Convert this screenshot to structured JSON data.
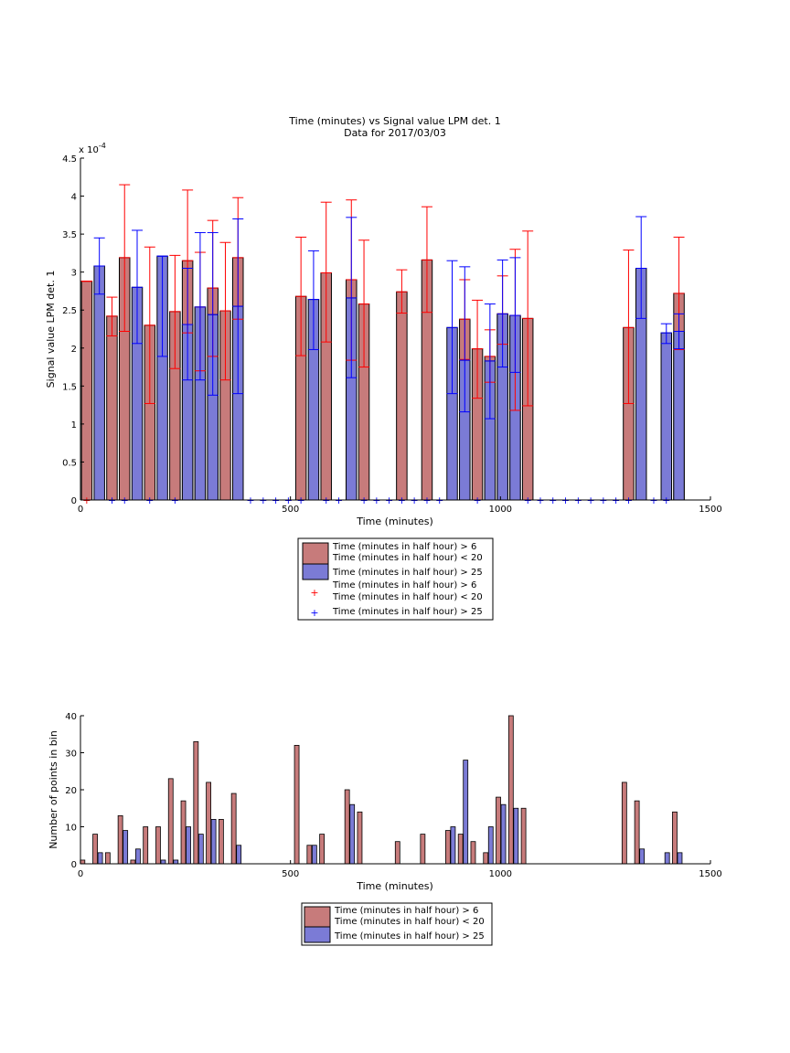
{
  "chart_data": [
    {
      "type": "bar",
      "title": "Time (minutes) vs Signal value LPM det. 1",
      "subtitle": "Data for 2017/03/03",
      "xlabel": "Time (minutes)",
      "ylabel": "Signal value LPM det. 1",
      "exponent_label": "x 10",
      "exponent_power": "-4",
      "xlim": [
        0,
        1500
      ],
      "ylim": [
        0,
        4.5
      ],
      "y_scale": 0.0001,
      "xticks": [
        "0",
        "500",
        "1000",
        "1500"
      ],
      "yticks": [
        "0",
        "0.5",
        "1",
        "1.5",
        "2",
        "2.5",
        "3",
        "3.5",
        "4",
        "4.5"
      ],
      "grid": false,
      "legend_position": "below",
      "legend": [
        {
          "label": "Time (minutes in half hour) > 6\nTime (minutes in half hour) < 20",
          "color": "#c77b7b",
          "marker": "patch"
        },
        {
          "label": "Time (minutes in half hour) > 25",
          "color": "#7b7bd6",
          "marker": "patch"
        },
        {
          "label": "Time (minutes in half hour) > 6\nTime (minutes in half hour) < 20",
          "color": "#ff0000",
          "marker": "+"
        },
        {
          "label": "Time (minutes in half hour) > 25",
          "color": "#0000ff",
          "marker": "+"
        }
      ],
      "series": [
        {
          "name": "Time (minutes in half hour) > 6 Time (minutes in half hour) < 20",
          "color": "#c77b7b",
          "err_color": "#ff0000",
          "x": [
            15,
            75,
            105,
            165,
            225,
            255,
            285,
            315,
            345,
            375,
            525,
            585,
            645,
            675,
            765,
            825,
            915,
            945,
            975,
            1005,
            1035,
            1065,
            1305,
            1425
          ],
          "values": [
            2.88,
            2.42,
            3.19,
            2.3,
            2.48,
            3.15,
            2.54,
            2.79,
            2.49,
            3.19,
            2.68,
            2.99,
            2.9,
            2.58,
            2.74,
            3.16,
            2.38,
            1.99,
            1.89,
            2.45,
            2.43,
            2.39,
            2.27,
            2.72
          ],
          "err_low": [
            2.88,
            2.16,
            2.22,
            1.27,
            1.73,
            2.2,
            1.7,
            1.89,
            1.58,
            2.38,
            1.9,
            2.08,
            1.84,
            1.75,
            2.46,
            2.47,
            1.85,
            1.34,
            1.55,
            2.05,
            1.18,
            1.24,
            1.27,
            1.98
          ],
          "err_high": [
            2.88,
            2.67,
            4.15,
            3.33,
            3.22,
            4.08,
            3.26,
            3.68,
            3.39,
            3.98,
            3.46,
            3.92,
            3.95,
            3.42,
            3.03,
            3.86,
            2.9,
            2.63,
            2.24,
            2.95,
            3.3,
            3.54,
            3.29,
            3.46
          ]
        },
        {
          "name": "Time (minutes in half hour) > 25",
          "color": "#7b7bd6",
          "err_color": "#0000ff",
          "x": [
            45,
            135,
            195,
            255,
            285,
            315,
            375,
            555,
            645,
            885,
            915,
            975,
            1005,
            1035,
            1335,
            1395,
            1425
          ],
          "values": [
            3.08,
            2.8,
            3.21,
            2.31,
            2.54,
            2.44,
            2.55,
            2.64,
            2.66,
            2.27,
            1.84,
            1.83,
            2.45,
            2.43,
            3.05,
            2.2,
            2.22
          ],
          "err_low": [
            2.71,
            2.06,
            1.89,
            1.58,
            1.58,
            1.38,
            1.4,
            1.98,
            1.61,
            1.4,
            1.16,
            1.07,
            1.75,
            1.68,
            2.39,
            2.06,
            1.99
          ],
          "err_high": [
            3.45,
            3.55,
            3.21,
            3.05,
            3.52,
            3.52,
            3.7,
            3.28,
            3.72,
            3.15,
            3.07,
            2.58,
            3.16,
            3.19,
            3.73,
            2.32,
            2.45
          ]
        },
        {
          "name": "Time (minutes in half hour) > 6 Time (minutes in half hour) < 20",
          "marker": "+",
          "color": "#ff0000",
          "x": [
            15
          ],
          "values": [
            0
          ]
        },
        {
          "name": "Time (minutes in half hour) > 25",
          "marker": "+",
          "color": "#0000ff",
          "x": [
            75,
            105,
            165,
            225,
            405,
            435,
            465,
            495,
            525,
            585,
            615,
            675,
            705,
            735,
            765,
            795,
            825,
            855,
            945,
            1065,
            1095,
            1125,
            1155,
            1185,
            1215,
            1245,
            1275,
            1305,
            1365,
            1395
          ],
          "values": [
            0,
            0,
            0,
            0,
            0,
            0,
            0,
            0,
            0,
            0,
            0,
            0,
            0,
            0,
            0,
            0,
            0,
            0,
            0,
            0,
            0,
            0,
            0,
            0,
            0,
            0,
            0,
            0,
            0,
            0
          ]
        }
      ]
    },
    {
      "type": "bar",
      "xlabel": "Time (minutes)",
      "ylabel": "Number of points in bin",
      "xlim": [
        0,
        1500
      ],
      "ylim": [
        0,
        40
      ],
      "xticks": [
        "0",
        "500",
        "1000",
        "1500"
      ],
      "yticks": [
        "0",
        "10",
        "20",
        "30",
        "40"
      ],
      "grid": false,
      "legend_position": "below",
      "legend": [
        {
          "label": "Time (minutes in half hour) > 6\nTime (minutes in half hour) < 20",
          "color": "#c77b7b",
          "marker": "patch"
        },
        {
          "label": "Time (minutes in half hour) > 25",
          "color": "#7b7bd6",
          "marker": "patch"
        }
      ],
      "series": [
        {
          "name": "Time (minutes in half hour) > 6 Time (minutes in half hour) < 20",
          "color": "#c77b7b",
          "x": [
            5,
            35,
            65,
            95,
            125,
            155,
            185,
            215,
            245,
            275,
            305,
            335,
            365,
            515,
            545,
            575,
            635,
            665,
            755,
            815,
            875,
            905,
            935,
            965,
            995,
            1025,
            1055,
            1295,
            1325,
            1415
          ],
          "values": [
            1,
            8,
            3,
            13,
            1,
            10,
            10,
            23,
            17,
            33,
            22,
            12,
            19,
            32,
            5,
            8,
            20,
            14,
            6,
            8,
            9,
            8,
            6,
            3,
            18,
            40,
            15,
            22,
            17,
            14
          ]
        },
        {
          "name": "Time (minutes in half hour) > 25",
          "color": "#7b7bd6",
          "x": [
            47,
            107,
            137,
            197,
            227,
            257,
            287,
            317,
            377,
            557,
            647,
            887,
            917,
            977,
            1007,
            1037,
            1337,
            1397,
            1427
          ],
          "values": [
            3,
            9,
            4,
            1,
            1,
            10,
            8,
            12,
            5,
            5,
            16,
            10,
            28,
            10,
            16,
            15,
            4,
            3,
            3
          ]
        }
      ]
    }
  ]
}
